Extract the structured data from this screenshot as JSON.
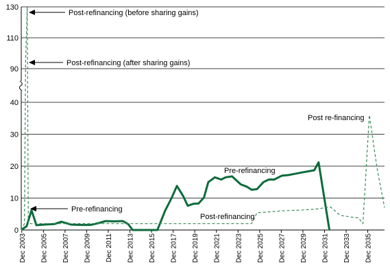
{
  "chart_data": {
    "type": "line",
    "y_ticks": [
      0,
      10,
      20,
      30,
      40,
      90,
      110,
      130
    ],
    "y_axis_break": {
      "lower_max": 40,
      "upper_min": 90
    },
    "x_tick_labels": [
      "Dec 2003",
      "Dec 2005",
      "Dec 2007",
      "Dec 2009",
      "Dec 2011",
      "Dec 2013",
      "Dec 2015",
      "Dec 2017",
      "Dec 2019",
      "Dec 2021",
      "Dec 2023",
      "Dec 2025",
      "Dec 2027",
      "Dec 2029",
      "Dec 2031",
      "Dec 2033",
      "Dec 2035"
    ],
    "x_range": [
      2003.9,
      2037.5
    ],
    "grid": "horizontal",
    "legend": "none",
    "series": [
      {
        "style": "solid-thick",
        "color": "#0b6b3a",
        "points": [
          [
            2003.9,
            0
          ],
          [
            2004.4,
            1.2
          ],
          [
            2004.85,
            6.2
          ],
          [
            2005.3,
            1.5
          ],
          [
            2006.0,
            1.7
          ],
          [
            2007.0,
            1.9
          ],
          [
            2007.6,
            2.6
          ],
          [
            2008.5,
            1.7
          ],
          [
            2009.5,
            1.6
          ],
          [
            2010.3,
            1.6
          ],
          [
            2011.0,
            2.1
          ],
          [
            2011.7,
            2.8
          ],
          [
            2012.5,
            2.7
          ],
          [
            2013.3,
            2.8
          ],
          [
            2013.8,
            1.8
          ],
          [
            2014.2,
            0
          ],
          [
            2016.5,
            0
          ],
          [
            2017.2,
            6.0
          ],
          [
            2017.8,
            10.0
          ],
          [
            2018.3,
            13.8
          ],
          [
            2018.9,
            10.5
          ],
          [
            2019.3,
            7.6
          ],
          [
            2019.8,
            8.2
          ],
          [
            2020.3,
            8.3
          ],
          [
            2020.8,
            10.2
          ],
          [
            2021.2,
            15.0
          ],
          [
            2021.8,
            16.5
          ],
          [
            2022.4,
            15.8
          ],
          [
            2022.8,
            16.5
          ],
          [
            2023.4,
            16.8
          ],
          [
            2024.2,
            14.3
          ],
          [
            2024.8,
            13.5
          ],
          [
            2025.2,
            12.6
          ],
          [
            2025.7,
            12.8
          ],
          [
            2026.3,
            15.0
          ],
          [
            2026.8,
            15.8
          ],
          [
            2027.3,
            15.8
          ],
          [
            2028.0,
            17.0
          ],
          [
            2028.6,
            17.2
          ],
          [
            2029.2,
            17.6
          ],
          [
            2030.0,
            18.1
          ],
          [
            2031.0,
            18.7
          ],
          [
            2031.4,
            21.2
          ],
          [
            2032.4,
            0
          ]
        ]
      },
      {
        "style": "dashed",
        "color": "#3a8a5a",
        "points": [
          [
            2003.9,
            0
          ],
          [
            2004.2,
            2.0
          ],
          [
            2004.3,
            93.0
          ],
          [
            2004.45,
            130.0
          ],
          [
            2004.55,
            2.0
          ],
          [
            2025.2,
            2.0
          ],
          [
            2025.7,
            5.4
          ],
          [
            2026.5,
            5.6
          ],
          [
            2028.0,
            6.0
          ],
          [
            2029.5,
            6.2
          ],
          [
            2031.0,
            6.5
          ],
          [
            2032.5,
            7.2
          ],
          [
            2033.4,
            4.6
          ],
          [
            2034.5,
            4.0
          ],
          [
            2035.1,
            3.8
          ],
          [
            2035.5,
            2.0
          ],
          [
            2036.1,
            36.0
          ],
          [
            2036.8,
            19.5
          ],
          [
            2037.5,
            7.0
          ]
        ]
      }
    ],
    "annotations": [
      {
        "id": "top-before",
        "text": "Post-refinancing (before sharing gains)",
        "arrow": true
      },
      {
        "id": "top-after",
        "text": "Post-refinancing (after sharing gains)",
        "arrow": true
      },
      {
        "id": "pre-left",
        "text": "Pre-refinancing",
        "arrow": true
      },
      {
        "id": "pre-mid",
        "text": "Pre-refinancing",
        "arrow": false
      },
      {
        "id": "post-mid",
        "text": "Post-refinancing",
        "arrow": false
      },
      {
        "id": "post-right",
        "text": "Post re-financing",
        "arrow": false
      }
    ]
  }
}
